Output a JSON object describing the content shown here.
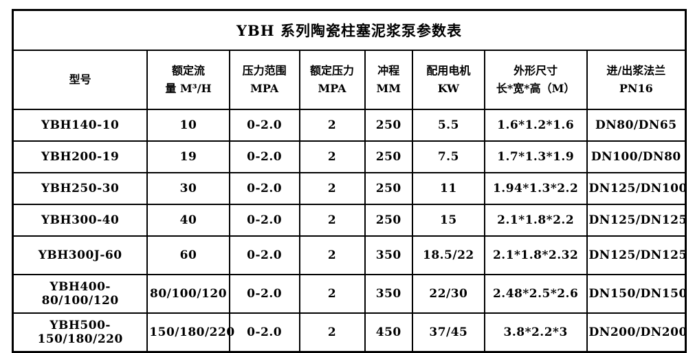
{
  "title": "YBH 系列陶瓷柱塞泥浆泵参数表",
  "colors": {
    "border": "#000000",
    "text": "#000000",
    "background": "#ffffff"
  },
  "table": {
    "columns": [
      {
        "lines": [
          "型号"
        ]
      },
      {
        "lines": [
          "额定流",
          "量 M³/H"
        ]
      },
      {
        "lines": [
          "压力范围",
          "MPA"
        ]
      },
      {
        "lines": [
          "额定压力",
          "MPA"
        ]
      },
      {
        "lines": [
          "冲程",
          "MM"
        ]
      },
      {
        "lines": [
          "配用电机",
          "KW"
        ]
      },
      {
        "lines": [
          "外形尺寸",
          "长*宽*高（M）"
        ]
      },
      {
        "lines": [
          "进/出浆法兰",
          "PN16"
        ]
      }
    ],
    "rows": [
      [
        "YBH140-10",
        "10",
        "0-2.0",
        "2",
        "250",
        "5.5",
        "1.6*1.2*1.6",
        "DN80/DN65"
      ],
      [
        "YBH200-19",
        "19",
        "0-2.0",
        "2",
        "250",
        "7.5",
        "1.7*1.3*1.9",
        "DN100/DN80"
      ],
      [
        "YBH250-30",
        "30",
        "0-2.0",
        "2",
        "250",
        "11",
        "1.94*1.3*2.2",
        "DN125/DN100"
      ],
      [
        "YBH300-40",
        "40",
        "0-2.0",
        "2",
        "250",
        "15",
        "2.1*1.8*2.2",
        "DN125/DN125"
      ],
      [
        "YBH300J-60",
        "60",
        "0-2.0",
        "2",
        "350",
        "18.5/22",
        "2.1*1.8*2.32",
        "DN125/DN125"
      ],
      [
        "YBH400-80/100/120",
        "80/100/120",
        "0-2.0",
        "2",
        "350",
        "22/30",
        "2.48*2.5*2.6",
        "DN150/DN150"
      ],
      [
        "YBH500-150/180/220",
        "150/180/220",
        "0-2.0",
        "2",
        "450",
        "37/45",
        "3.8*2.2*3",
        "DN200/DN200"
      ]
    ]
  }
}
